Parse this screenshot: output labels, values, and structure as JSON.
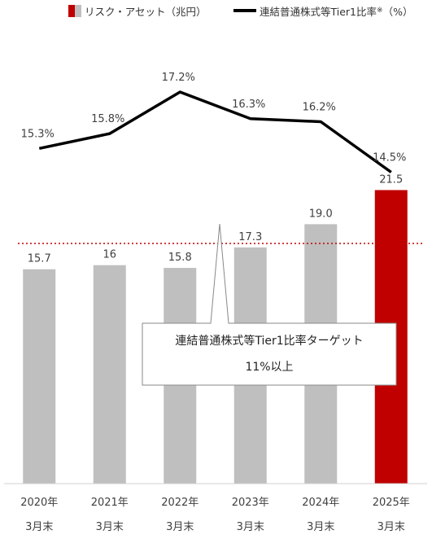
{
  "legend": {
    "bars_label": "リスク・アセット（兆円）",
    "line_label": "連結普通株式等Tier1比率",
    "line_note": "※",
    "line_unit": "（%）"
  },
  "callout": {
    "line1": "連結普通株式等Tier1比率ターゲット",
    "line2": "11%以上"
  },
  "colors": {
    "bar_default": "#bfbfbf",
    "bar_highlight": "#c00000",
    "line": "#000000",
    "target_line": "#c00000"
  },
  "chart_data": {
    "type": "bar",
    "categories": [
      [
        "2020年",
        "3月末"
      ],
      [
        "2021年",
        "3月末"
      ],
      [
        "2022年",
        "3月末"
      ],
      [
        "2023年",
        "3月末"
      ],
      [
        "2024年",
        "3月末"
      ],
      [
        "2025年",
        "3月末"
      ]
    ],
    "series": [
      {
        "name": "リスク・アセット（兆円）",
        "type": "bar",
        "values": [
          15.7,
          16,
          15.8,
          17.3,
          19.0,
          21.5
        ],
        "labels": [
          "15.7",
          "16",
          "15.8",
          "17.3",
          "19.0",
          "21.5"
        ],
        "highlight_index": 5
      },
      {
        "name": "連結普通株式等Tier1比率※（%）",
        "type": "line",
        "values": [
          15.3,
          15.8,
          17.2,
          16.3,
          16.2,
          14.5
        ],
        "labels": [
          "15.3%",
          "15.8%",
          "17.2%",
          "16.3%",
          "16.2%",
          "14.5%"
        ]
      }
    ],
    "target_line": {
      "style": "dotted"
    },
    "ylim_bars": [
      0,
      26
    ],
    "ylim_line": [
      5,
      19.7
    ],
    "grid": false,
    "legend_position": "top"
  }
}
